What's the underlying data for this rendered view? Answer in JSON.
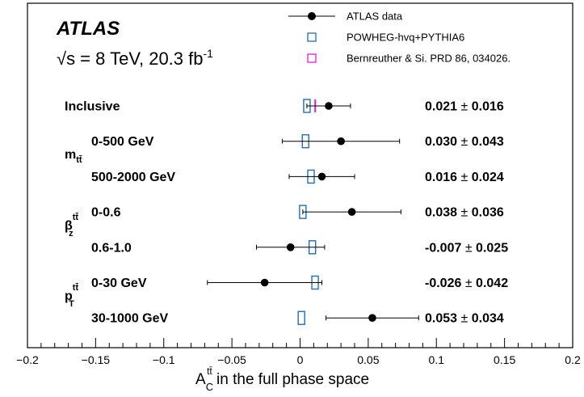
{
  "chart_data": {
    "type": "scatter",
    "experiment": "ATLAS",
    "energy_label": "√s = 8 TeV, 20.3 fb",
    "energy_superscript": "-1",
    "xlabel_main": "A",
    "xlabel_sub": "C",
    "xlabel_sup": "tt̄",
    "xlabel_rest": " in the full phase space",
    "xlim": [
      -0.2,
      0.2
    ],
    "x_ticks": [
      -0.2,
      -0.15,
      -0.1,
      -0.05,
      0,
      0.05,
      0.1,
      0.15,
      0.2
    ],
    "x_tick_labels": [
      "−0.2",
      "−0.15",
      "−0.1",
      "−0.05",
      "0",
      "0.05",
      "0.1",
      "0.15",
      "0.2"
    ],
    "legend": [
      {
        "label": "ATLAS data",
        "marker": "filled-circle-errorbar",
        "color": "#000000"
      },
      {
        "label": "POWHEG-hvq+PYTHIA6",
        "marker": "open-box",
        "color": "#1f6fb2"
      },
      {
        "label": "Bernreuther & Si. PRD 86, 034026.",
        "marker": "open-box",
        "color": "#e619e6"
      }
    ],
    "groups": [
      {
        "label_main": "",
        "label_sub": "",
        "label_sup": ""
      },
      {
        "label_main": "m",
        "label_sub": "tt̄",
        "label_sup": ""
      },
      {
        "label_main": "β",
        "label_sub": "z",
        "label_sup": "tt̄"
      },
      {
        "label_main": "p",
        "label_sub": "T",
        "label_sup": "tt̄"
      }
    ],
    "rows": [
      {
        "group": 0,
        "label": "Inclusive",
        "value": 0.021,
        "error": 0.016,
        "value_text": "0.021",
        "error_text": "0.016",
        "powheg": 0.005,
        "bernreuther": 0.0111
      },
      {
        "group": 1,
        "label": "0-500 GeV",
        "value": 0.03,
        "error": 0.043,
        "value_text": "0.030",
        "error_text": "0.043",
        "powheg": 0.004,
        "bernreuther": null
      },
      {
        "group": 1,
        "label": "500-2000 GeV",
        "value": 0.016,
        "error": 0.024,
        "value_text": "0.016",
        "error_text": "0.024",
        "powheg": 0.008,
        "bernreuther": null
      },
      {
        "group": 2,
        "label": "0-0.6",
        "value": 0.038,
        "error": 0.036,
        "value_text": "0.038",
        "error_text": "0.036",
        "powheg": 0.002,
        "bernreuther": null
      },
      {
        "group": 2,
        "label": "0.6-1.0",
        "value": -0.007,
        "error": 0.025,
        "value_text": "-0.007",
        "error_text": "0.025",
        "powheg": 0.009,
        "bernreuther": null
      },
      {
        "group": 3,
        "label": "0-30 GeV",
        "value": -0.026,
        "error": 0.042,
        "value_text": "-0.026",
        "error_text": "0.042",
        "powheg": 0.011,
        "bernreuther": null
      },
      {
        "group": 3,
        "label": "30-1000 GeV",
        "value": 0.053,
        "error": 0.034,
        "value_text": "0.053",
        "error_text": "0.034",
        "powheg": 0.001,
        "bernreuther": null
      }
    ],
    "pm_symbol": "±",
    "grid": false,
    "legend_position": "top-right"
  }
}
